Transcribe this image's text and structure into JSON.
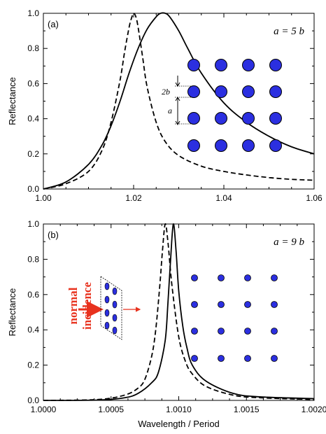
{
  "colors": {
    "dot": "#2b2fe0",
    "arrow": "#e8321e",
    "line": "#000000"
  },
  "chart_data": [
    {
      "type": "line",
      "panel_label": "(a)",
      "annotation": "a = 5 b",
      "ylabel": "Reflectance",
      "xlabel": "",
      "xlim": [
        1.0,
        1.06
      ],
      "ylim": [
        0.0,
        1.0
      ],
      "x_ticks": [
        "1.00",
        "1.02",
        "1.04",
        "1.06"
      ],
      "y_ticks": [
        "0.0",
        "0.2",
        "0.4",
        "0.6",
        "0.8",
        "1.0"
      ],
      "inset_labels": {
        "spacing_small": "2b",
        "spacing_large": "a"
      },
      "series": [
        {
          "style": "dashed",
          "x": [
            1.0,
            1.005,
            1.01,
            1.013,
            1.015,
            1.017,
            1.018,
            1.019,
            1.0195,
            1.02,
            1.0205,
            1.021,
            1.022,
            1.023,
            1.025,
            1.027,
            1.03,
            1.035,
            1.04,
            1.045,
            1.05,
            1.055,
            1.06
          ],
          "y": [
            0.0,
            0.03,
            0.1,
            0.22,
            0.38,
            0.62,
            0.78,
            0.92,
            0.97,
            1.0,
            0.98,
            0.92,
            0.75,
            0.58,
            0.38,
            0.27,
            0.19,
            0.13,
            0.1,
            0.08,
            0.065,
            0.055,
            0.05
          ]
        },
        {
          "style": "solid",
          "x": [
            1.0,
            1.005,
            1.01,
            1.013,
            1.015,
            1.017,
            1.019,
            1.021,
            1.023,
            1.025,
            1.026,
            1.027,
            1.028,
            1.03,
            1.032,
            1.035,
            1.04,
            1.045,
            1.05,
            1.055,
            1.06
          ],
          "y": [
            0.0,
            0.04,
            0.14,
            0.25,
            0.36,
            0.5,
            0.66,
            0.8,
            0.91,
            0.98,
            1.0,
            1.0,
            0.98,
            0.9,
            0.8,
            0.66,
            0.49,
            0.38,
            0.3,
            0.24,
            0.2
          ]
        }
      ]
    },
    {
      "type": "line",
      "panel_label": "(b)",
      "annotation": "a = 9 b",
      "ylabel": "Reflectance",
      "xlabel": "Wavelength / Period",
      "xlim": [
        1.0,
        1.002
      ],
      "ylim": [
        0.0,
        1.0
      ],
      "x_ticks": [
        "1.0000",
        "1.0005",
        "1.0010",
        "1.0015",
        "1.0020"
      ],
      "y_ticks": [
        "0.0",
        "0.2",
        "0.4",
        "0.6",
        "0.8",
        "1.0"
      ],
      "incidence_text": [
        "normal",
        "incidence"
      ],
      "series": [
        {
          "style": "dashed",
          "x": [
            1.0,
            1.0004,
            1.0006,
            1.0007,
            1.00075,
            1.0008,
            1.00083,
            1.00086,
            1.00088,
            1.0009,
            1.00092,
            1.00095,
            1.001,
            1.00105,
            1.0011,
            1.0012,
            1.0014,
            1.0016,
            1.002
          ],
          "y": [
            0.0,
            0.005,
            0.03,
            0.07,
            0.12,
            0.25,
            0.4,
            0.65,
            0.85,
            1.0,
            0.9,
            0.65,
            0.36,
            0.22,
            0.15,
            0.08,
            0.03,
            0.015,
            0.005
          ]
        },
        {
          "style": "solid",
          "x": [
            1.0,
            1.0004,
            1.0006,
            1.0007,
            1.0008,
            1.00085,
            1.0009,
            1.00092,
            1.00094,
            1.00096,
            1.00098,
            1.001,
            1.00103,
            1.00106,
            1.0011,
            1.0012,
            1.0014,
            1.0016,
            1.002
          ],
          "y": [
            0.0,
            0.002,
            0.015,
            0.04,
            0.1,
            0.16,
            0.34,
            0.55,
            0.8,
            1.0,
            0.85,
            0.62,
            0.42,
            0.3,
            0.2,
            0.11,
            0.04,
            0.02,
            0.01
          ]
        }
      ]
    }
  ]
}
